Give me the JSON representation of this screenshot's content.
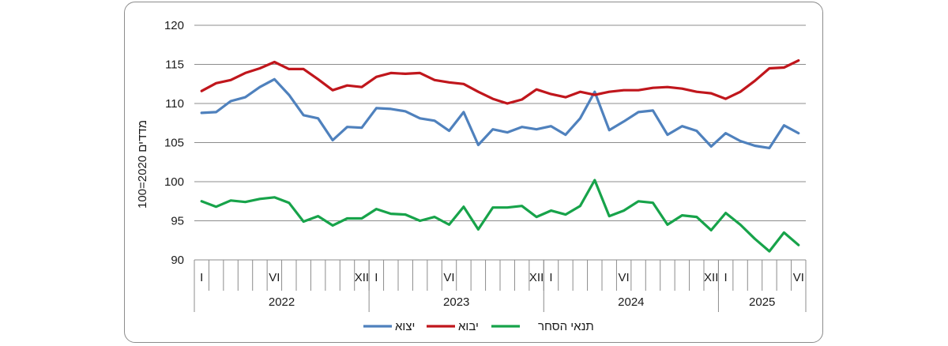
{
  "chart_data": {
    "type": "line",
    "ylabel": "מדדים 2020=100",
    "ylim": [
      90,
      120
    ],
    "yticks": [
      90,
      95,
      100,
      105,
      110,
      115,
      120
    ],
    "x_month_labels": [
      "I",
      "",
      "",
      "",
      "",
      "VI",
      "",
      "",
      "",
      "",
      "",
      "XII",
      "I",
      "",
      "",
      "",
      "",
      "VI",
      "",
      "",
      "",
      "",
      "",
      "XII",
      "I",
      "",
      "",
      "",
      "",
      "VI",
      "",
      "",
      "",
      "",
      "",
      "XII",
      "I",
      "",
      "",
      "",
      "",
      "VI"
    ],
    "years": [
      {
        "label": "2022",
        "start": 0,
        "count": 12
      },
      {
        "label": "2023",
        "start": 12,
        "count": 12
      },
      {
        "label": "2024",
        "start": 24,
        "count": 12
      },
      {
        "label": "2025",
        "start": 36,
        "count": 6
      }
    ],
    "legend": "bottom",
    "grid": true,
    "series": [
      {
        "name": "יצוא",
        "color": "#4f81bd",
        "values": [
          108.8,
          108.9,
          110.3,
          110.8,
          112.1,
          113.1,
          111.1,
          108.5,
          108.1,
          105.3,
          107.0,
          106.9,
          109.4,
          109.3,
          109.0,
          108.1,
          107.8,
          106.5,
          108.9,
          104.7,
          106.7,
          106.3,
          107.0,
          106.7,
          107.1,
          106.0,
          108.1,
          111.5,
          106.6,
          107.7,
          108.9,
          109.1,
          106.0,
          107.1,
          106.5,
          104.5,
          106.2,
          105.2,
          104.6,
          104.3,
          107.2,
          106.2
        ]
      },
      {
        "name": "יבוא",
        "color": "#c0161c",
        "values": [
          111.6,
          112.6,
          113.0,
          113.9,
          114.5,
          115.3,
          114.4,
          114.4,
          113.1,
          111.7,
          112.3,
          112.1,
          113.4,
          113.9,
          113.8,
          113.9,
          113.0,
          112.7,
          112.5,
          111.5,
          110.6,
          110.0,
          110.5,
          111.8,
          111.2,
          110.8,
          111.5,
          111.1,
          111.5,
          111.7,
          111.7,
          112.0,
          112.1,
          111.9,
          111.5,
          111.3,
          110.6,
          111.5,
          112.9,
          114.5,
          114.6,
          115.5
        ]
      },
      {
        "name": "תנאי הסחר",
        "color": "#17a34a",
        "values": [
          97.5,
          96.8,
          97.6,
          97.4,
          97.8,
          98.0,
          97.3,
          94.9,
          95.6,
          94.4,
          95.3,
          95.3,
          96.5,
          95.9,
          95.8,
          95.0,
          95.5,
          94.5,
          96.8,
          93.9,
          96.7,
          96.7,
          96.9,
          95.5,
          96.3,
          95.8,
          96.9,
          100.2,
          95.6,
          96.3,
          97.5,
          97.3,
          94.5,
          95.7,
          95.5,
          93.8,
          96.0,
          94.5,
          92.7,
          91.1,
          93.5,
          91.9
        ]
      }
    ],
    "legend_order": [
      "תנאי הסחר",
      "יבוא",
      "יצוא"
    ]
  }
}
